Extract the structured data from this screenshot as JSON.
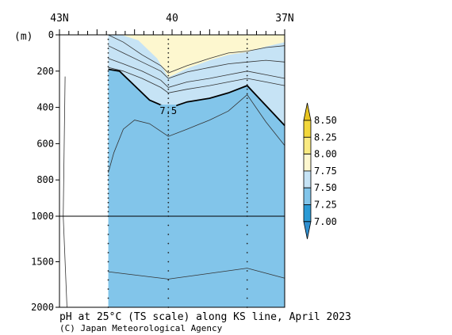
{
  "chart_data": {
    "type": "heatmap",
    "title": "pH at 25°C (TS scale) along KS line, April 2023",
    "credit": "(C) Japan Meteorological Agency",
    "ylabel": "(m)",
    "x_axis": {
      "ticks": [
        {
          "value": 43,
          "label": "43N"
        },
        {
          "value": 40,
          "label": "40"
        },
        {
          "value": 37,
          "label": "37N"
        }
      ],
      "range": [
        43,
        37
      ]
    },
    "y_axis": {
      "upper_ticks": [
        0,
        200,
        400,
        600,
        800,
        1000
      ],
      "lower_ticks": [
        1500,
        2000
      ],
      "range": [
        0,
        2000
      ],
      "break_depth": 1000
    },
    "colorbar": {
      "levels": [
        "7.00",
        "7.25",
        "7.50",
        "7.75",
        "8.00",
        "8.25",
        "8.50"
      ],
      "colors": {
        "below_7_00": "#2f8fd0",
        "7_00_7_25": "#2a9ad5",
        "7_25_7_50": "#82c5ea",
        "7_50_7_75": "#c6e3f5",
        "7_75_8_00": "#fdf7cf",
        "8_00_8_25": "#f9ea82",
        "8_25_8_50": "#f2d73c",
        "above_8_50": "#e8c420"
      }
    },
    "contour_labels": [
      {
        "text": "7.5",
        "lat": 40.1,
        "depth": 420
      }
    ],
    "data_extent": {
      "lat_start": 41.7,
      "lat_end": 37.0
    },
    "station_latitudes": [
      41.7,
      40.1,
      38.0
    ],
    "field_bands": [
      {
        "range": "7.75-8.00",
        "lat": [
          41.7,
          41.35,
          40.9,
          40.4,
          40.1,
          39.6,
          39.0,
          38.5,
          38.0,
          37.5,
          37.0
        ],
        "lower_depth": [
          0,
          0,
          30,
          130,
          235,
          185,
          140,
          110,
          95,
          65,
          40
        ]
      },
      {
        "range": "7.50-7.75",
        "lat": [
          41.7,
          41.3,
          40.8,
          40.3,
          40.1,
          39.6,
          39.0,
          38.5,
          38.0,
          37.5,
          37.0
        ],
        "lower_depth": [
          190,
          210,
          260,
          320,
          350,
          320,
          300,
          280,
          270,
          260,
          270
        ]
      },
      {
        "range": "7.5 contour",
        "lat": [
          41.7,
          41.4,
          41.0,
          40.6,
          40.1,
          39.6,
          39.0,
          38.5,
          38.0,
          37.5,
          37.0
        ],
        "lower_depth": [
          190,
          200,
          280,
          360,
          405,
          370,
          350,
          320,
          280,
          390,
          500
        ]
      }
    ],
    "lower_contour": {
      "lat": [
        41.7,
        40.1,
        38.0,
        37.0
      ],
      "depth": [
        1610,
        1690,
        1570,
        1680
      ]
    }
  }
}
